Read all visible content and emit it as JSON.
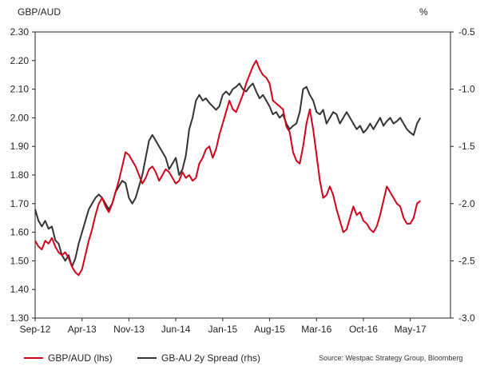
{
  "chart_data": {
    "type": "line",
    "title_left": "GBP/AUD",
    "title_right": "%",
    "y_left": {
      "min": 1.3,
      "max": 2.3,
      "ticks": [
        "1.30",
        "1.40",
        "1.50",
        "1.60",
        "1.70",
        "1.80",
        "1.90",
        "2.00",
        "2.10",
        "2.20",
        "2.30"
      ]
    },
    "y_right": {
      "min": -3.0,
      "max": -0.5,
      "ticks": [
        "-3.0",
        "-2.5",
        "-2.0",
        "-1.5",
        "-1.0",
        "-0.5"
      ]
    },
    "x_ticks": [
      "Sep-12",
      "Apr-13",
      "Nov-13",
      "Jun-14",
      "Jan-15",
      "Aug-15",
      "Mar-16",
      "Oct-16",
      "May-17"
    ],
    "x_range_months": [
      0,
      62
    ],
    "series": [
      {
        "name": "GBP/AUD (lhs)",
        "axis": "left",
        "color": "#d0021b",
        "points": [
          [
            0,
            1.57
          ],
          [
            0.5,
            1.55
          ],
          [
            1,
            1.54
          ],
          [
            1.5,
            1.57
          ],
          [
            2,
            1.56
          ],
          [
            2.5,
            1.58
          ],
          [
            3,
            1.55
          ],
          [
            3.5,
            1.53
          ],
          [
            4,
            1.52
          ],
          [
            4.5,
            1.53
          ],
          [
            5,
            1.51
          ],
          [
            5.5,
            1.48
          ],
          [
            6,
            1.46
          ],
          [
            6.5,
            1.45
          ],
          [
            7,
            1.47
          ],
          [
            7.5,
            1.52
          ],
          [
            8,
            1.57
          ],
          [
            8.5,
            1.61
          ],
          [
            9,
            1.66
          ],
          [
            9.5,
            1.7
          ],
          [
            10,
            1.72
          ],
          [
            10.5,
            1.69
          ],
          [
            11,
            1.67
          ],
          [
            11.5,
            1.7
          ],
          [
            12,
            1.74
          ],
          [
            12.5,
            1.78
          ],
          [
            13,
            1.83
          ],
          [
            13.5,
            1.88
          ],
          [
            14,
            1.87
          ],
          [
            14.5,
            1.85
          ],
          [
            15,
            1.83
          ],
          [
            15.5,
            1.8
          ],
          [
            16,
            1.77
          ],
          [
            16.5,
            1.79
          ],
          [
            17,
            1.82
          ],
          [
            17.5,
            1.83
          ],
          [
            18,
            1.81
          ],
          [
            18.5,
            1.78
          ],
          [
            19,
            1.8
          ],
          [
            19.5,
            1.82
          ],
          [
            20,
            1.81
          ],
          [
            20.5,
            1.79
          ],
          [
            21,
            1.77
          ],
          [
            21.5,
            1.78
          ],
          [
            22,
            1.81
          ],
          [
            22.5,
            1.79
          ],
          [
            23,
            1.8
          ],
          [
            23.5,
            1.78
          ],
          [
            24,
            1.79
          ],
          [
            24.5,
            1.84
          ],
          [
            25,
            1.86
          ],
          [
            25.5,
            1.89
          ],
          [
            26,
            1.9
          ],
          [
            26.5,
            1.86
          ],
          [
            27,
            1.89
          ],
          [
            27.5,
            1.94
          ],
          [
            28,
            1.98
          ],
          [
            28.5,
            2.02
          ],
          [
            29,
            2.06
          ],
          [
            29.5,
            2.03
          ],
          [
            30,
            2.02
          ],
          [
            30.5,
            2.05
          ],
          [
            31,
            2.08
          ],
          [
            31.5,
            2.12
          ],
          [
            32,
            2.15
          ],
          [
            32.5,
            2.18
          ],
          [
            33,
            2.2
          ],
          [
            33.5,
            2.17
          ],
          [
            34,
            2.15
          ],
          [
            34.5,
            2.14
          ],
          [
            35,
            2.12
          ],
          [
            35.5,
            2.06
          ],
          [
            36,
            2.05
          ],
          [
            36.5,
            2.04
          ],
          [
            37,
            2.03
          ],
          [
            37.5,
            1.97
          ],
          [
            38,
            1.95
          ],
          [
            38.5,
            1.88
          ],
          [
            39,
            1.85
          ],
          [
            39.5,
            1.84
          ],
          [
            40,
            1.9
          ],
          [
            40.5,
            1.98
          ],
          [
            41,
            2.03
          ],
          [
            41.5,
            1.96
          ],
          [
            42,
            1.87
          ],
          [
            42.5,
            1.78
          ],
          [
            43,
            1.72
          ],
          [
            43.5,
            1.73
          ],
          [
            44,
            1.76
          ],
          [
            44.5,
            1.73
          ],
          [
            45,
            1.68
          ],
          [
            45.5,
            1.64
          ],
          [
            46,
            1.6
          ],
          [
            46.5,
            1.61
          ],
          [
            47,
            1.65
          ],
          [
            47.5,
            1.69
          ],
          [
            48,
            1.66
          ],
          [
            48.5,
            1.67
          ],
          [
            49,
            1.64
          ],
          [
            49.5,
            1.63
          ],
          [
            50,
            1.61
          ],
          [
            50.5,
            1.6
          ],
          [
            51,
            1.62
          ],
          [
            51.5,
            1.66
          ],
          [
            52,
            1.71
          ],
          [
            52.5,
            1.76
          ],
          [
            53,
            1.74
          ],
          [
            53.5,
            1.72
          ],
          [
            54,
            1.7
          ],
          [
            54.5,
            1.69
          ],
          [
            55,
            1.65
          ],
          [
            55.5,
            1.63
          ],
          [
            56,
            1.63
          ],
          [
            56.5,
            1.65
          ],
          [
            57,
            1.7
          ],
          [
            57.5,
            1.71
          ]
        ]
      },
      {
        "name": "GB-AU 2y Spread (rhs)",
        "axis": "right",
        "color": "#333333",
        "points": [
          [
            0,
            -2.05
          ],
          [
            0.5,
            -2.15
          ],
          [
            1,
            -2.2
          ],
          [
            1.5,
            -2.15
          ],
          [
            2,
            -2.22
          ],
          [
            2.5,
            -2.2
          ],
          [
            3,
            -2.32
          ],
          [
            3.5,
            -2.35
          ],
          [
            4,
            -2.45
          ],
          [
            4.5,
            -2.5
          ],
          [
            5,
            -2.45
          ],
          [
            5.5,
            -2.55
          ],
          [
            6,
            -2.48
          ],
          [
            6.5,
            -2.35
          ],
          [
            7,
            -2.25
          ],
          [
            7.5,
            -2.15
          ],
          [
            8,
            -2.05
          ],
          [
            8.5,
            -2.0
          ],
          [
            9,
            -1.95
          ],
          [
            9.5,
            -1.92
          ],
          [
            10,
            -1.95
          ],
          [
            10.5,
            -2.0
          ],
          [
            11,
            -2.05
          ],
          [
            11.5,
            -2.0
          ],
          [
            12,
            -1.9
          ],
          [
            12.5,
            -1.85
          ],
          [
            13,
            -1.8
          ],
          [
            13.5,
            -1.82
          ],
          [
            14,
            -1.95
          ],
          [
            14.5,
            -2.0
          ],
          [
            15,
            -1.95
          ],
          [
            15.5,
            -1.85
          ],
          [
            16,
            -1.75
          ],
          [
            16.5,
            -1.6
          ],
          [
            17,
            -1.45
          ],
          [
            17.5,
            -1.4
          ],
          [
            18,
            -1.45
          ],
          [
            18.5,
            -1.5
          ],
          [
            19,
            -1.55
          ],
          [
            19.5,
            -1.6
          ],
          [
            20,
            -1.7
          ],
          [
            20.5,
            -1.65
          ],
          [
            21,
            -1.6
          ],
          [
            21.5,
            -1.75
          ],
          [
            22,
            -1.7
          ],
          [
            22.5,
            -1.58
          ],
          [
            23,
            -1.35
          ],
          [
            23.5,
            -1.25
          ],
          [
            24,
            -1.1
          ],
          [
            24.5,
            -1.05
          ],
          [
            25,
            -1.1
          ],
          [
            25.5,
            -1.08
          ],
          [
            26,
            -1.12
          ],
          [
            26.5,
            -1.15
          ],
          [
            27,
            -1.18
          ],
          [
            27.5,
            -1.15
          ],
          [
            28,
            -1.05
          ],
          [
            28.5,
            -1.02
          ],
          [
            29,
            -1.05
          ],
          [
            29.5,
            -1.0
          ],
          [
            30,
            -0.98
          ],
          [
            30.5,
            -0.95
          ],
          [
            31,
            -1.0
          ],
          [
            31.5,
            -1.02
          ],
          [
            32,
            -0.98
          ],
          [
            32.5,
            -0.95
          ],
          [
            33,
            -1.02
          ],
          [
            33.5,
            -1.08
          ],
          [
            34,
            -1.05
          ],
          [
            34.5,
            -1.1
          ],
          [
            35,
            -1.15
          ],
          [
            35.5,
            -1.22
          ],
          [
            36,
            -1.2
          ],
          [
            36.5,
            -1.25
          ],
          [
            37,
            -1.22
          ],
          [
            37.5,
            -1.3
          ],
          [
            38,
            -1.35
          ],
          [
            38.5,
            -1.32
          ],
          [
            39,
            -1.3
          ],
          [
            39.5,
            -1.2
          ],
          [
            40,
            -1.0
          ],
          [
            40.5,
            -0.98
          ],
          [
            41,
            -1.05
          ],
          [
            41.5,
            -1.1
          ],
          [
            42,
            -1.2
          ],
          [
            42.5,
            -1.22
          ],
          [
            43,
            -1.18
          ],
          [
            43.5,
            -1.3
          ],
          [
            44,
            -1.25
          ],
          [
            44.5,
            -1.2
          ],
          [
            45,
            -1.22
          ],
          [
            45.5,
            -1.3
          ],
          [
            46,
            -1.25
          ],
          [
            46.5,
            -1.2
          ],
          [
            47,
            -1.25
          ],
          [
            47.5,
            -1.3
          ],
          [
            48,
            -1.35
          ],
          [
            48.5,
            -1.32
          ],
          [
            49,
            -1.38
          ],
          [
            49.5,
            -1.35
          ],
          [
            50,
            -1.3
          ],
          [
            50.5,
            -1.35
          ],
          [
            51,
            -1.3
          ],
          [
            51.5,
            -1.25
          ],
          [
            52,
            -1.32
          ],
          [
            52.5,
            -1.28
          ],
          [
            53,
            -1.25
          ],
          [
            53.5,
            -1.3
          ],
          [
            54,
            -1.28
          ],
          [
            54.5,
            -1.25
          ],
          [
            55,
            -1.3
          ],
          [
            55.5,
            -1.35
          ],
          [
            56,
            -1.38
          ],
          [
            56.5,
            -1.4
          ],
          [
            57,
            -1.3
          ],
          [
            57.5,
            -1.25
          ]
        ]
      }
    ],
    "source": "Source: Westpac Strategy Group, Bloomberg"
  }
}
